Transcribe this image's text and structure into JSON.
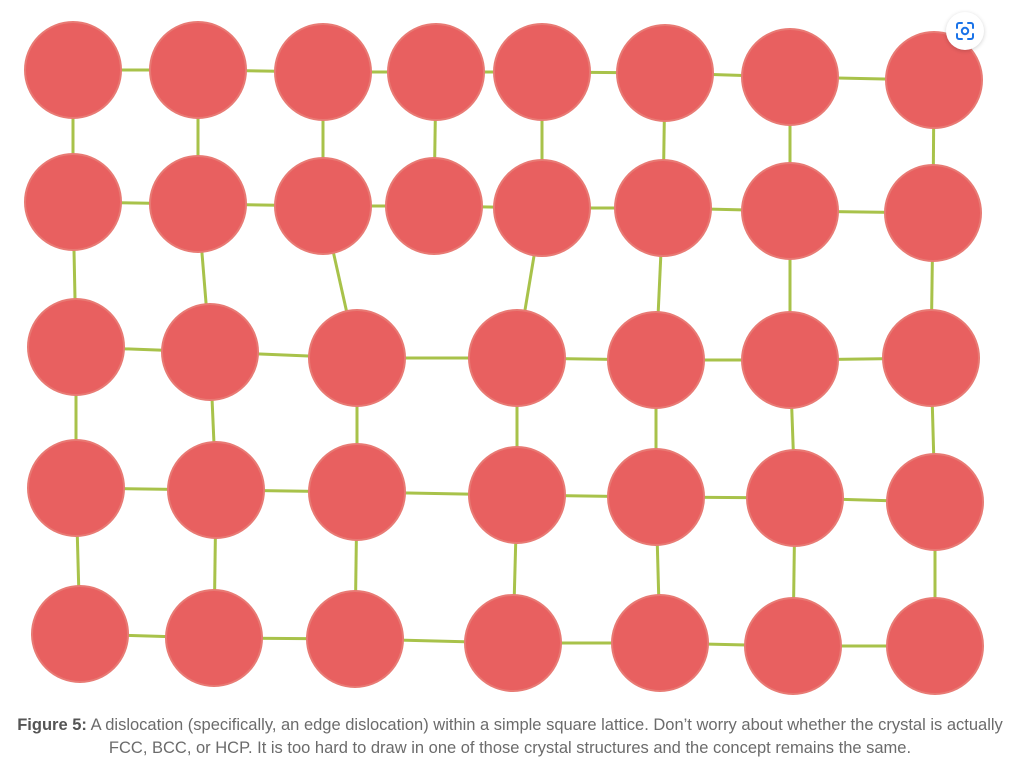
{
  "figure": {
    "lattice_color": "#e86060",
    "atom_stroke": "#e87a74",
    "bond_color": "#a8c24a",
    "rows": [
      {
        "atoms": 8,
        "bonded_to_next_row": [
          0,
          1,
          2,
          3,
          4,
          5,
          6,
          7
        ]
      },
      {
        "atoms": 8,
        "bonded_to_next_row": [
          0,
          1,
          2,
          4,
          5,
          6,
          7
        ]
      },
      {
        "atoms": 7,
        "bonded_to_next_row": [
          0,
          1,
          2,
          3,
          4,
          5,
          6
        ]
      },
      {
        "atoms": 7,
        "bonded_to_next_row": [
          0,
          1,
          2,
          3,
          4,
          5,
          6
        ]
      },
      {
        "atoms": 7
      }
    ],
    "extra_half_plane": "the atoms above the dislocation stop at row 2; two atoms of row 2 bend down to meet one atom of row 3"
  },
  "caption": {
    "label": "Figure 5:",
    "text": " A dislocation (specifically, an edge dislocation) within a simple square lattice. Don’t worry about whether the crystal is actually FCC, BCC, or HCP. It is too hard to draw in one of those crystal structures and the concept remains the same."
  },
  "toolbar": {
    "lens_icon": "visual-search-icon",
    "lens_color": "#1a73e8"
  }
}
